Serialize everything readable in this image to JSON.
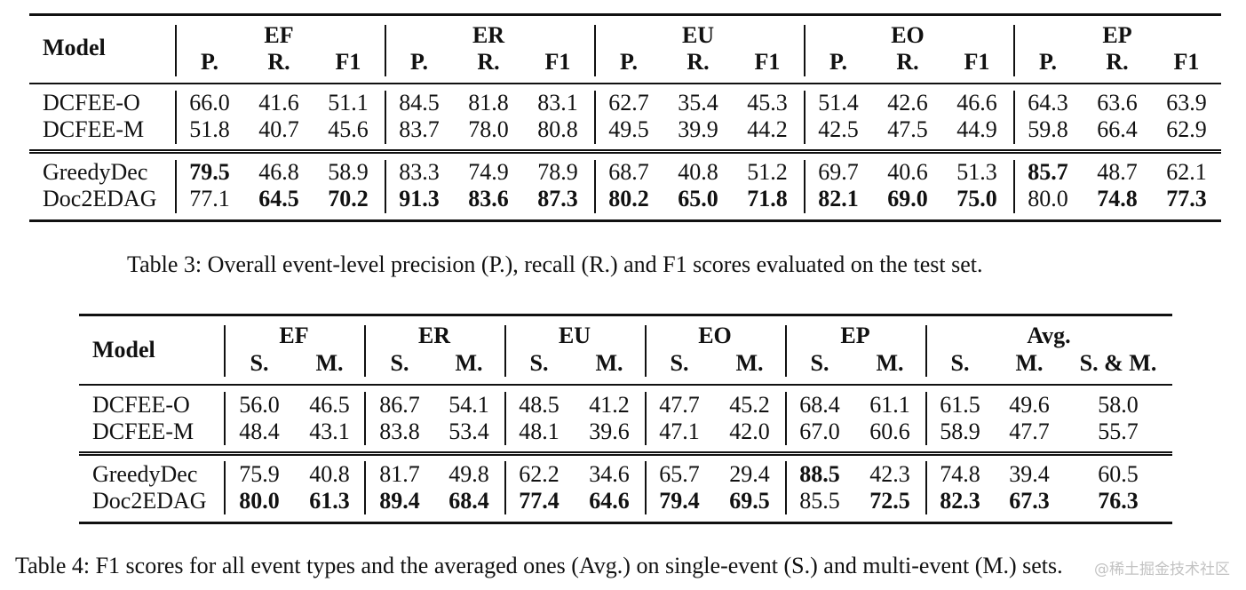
{
  "table3": {
    "model_header": "Model",
    "groups": [
      "EF",
      "ER",
      "EU",
      "EO",
      "EP"
    ],
    "subheaders": [
      "P.",
      "R.",
      "F1"
    ],
    "rows": [
      {
        "model": "DCFEE-O",
        "values": [
          "66.0",
          "41.6",
          "51.1",
          "84.5",
          "81.8",
          "83.1",
          "62.7",
          "35.4",
          "45.3",
          "51.4",
          "42.6",
          "46.6",
          "64.3",
          "63.6",
          "63.9"
        ],
        "bold": []
      },
      {
        "model": "DCFEE-M",
        "values": [
          "51.8",
          "40.7",
          "45.6",
          "83.7",
          "78.0",
          "80.8",
          "49.5",
          "39.9",
          "44.2",
          "42.5",
          "47.5",
          "44.9",
          "59.8",
          "66.4",
          "62.9"
        ],
        "bold": []
      },
      {
        "model": "GreedyDec",
        "values": [
          "79.5",
          "46.8",
          "58.9",
          "83.3",
          "74.9",
          "78.9",
          "68.7",
          "40.8",
          "51.2",
          "69.7",
          "40.6",
          "51.3",
          "85.7",
          "48.7",
          "62.1"
        ],
        "bold": [
          0,
          12
        ]
      },
      {
        "model": "Doc2EDAG",
        "values": [
          "77.1",
          "64.5",
          "70.2",
          "91.3",
          "83.6",
          "87.3",
          "80.2",
          "65.0",
          "71.8",
          "82.1",
          "69.0",
          "75.0",
          "80.0",
          "74.8",
          "77.3"
        ],
        "bold": [
          1,
          2,
          3,
          4,
          5,
          6,
          7,
          8,
          9,
          10,
          11,
          13,
          14
        ]
      }
    ],
    "caption": "Table 3: Overall event-level precision (P.), recall (R.) and F1 scores evaluated on the test set."
  },
  "table4": {
    "model_header": "Model",
    "groups": [
      "EF",
      "ER",
      "EU",
      "EO",
      "EP",
      "Avg."
    ],
    "subheaders": [
      "S.",
      "M.",
      "S.",
      "M.",
      "S.",
      "M.",
      "S.",
      "M.",
      "S.",
      "M.",
      "S.",
      "M.",
      "S. & M."
    ],
    "rows": [
      {
        "model": "DCFEE-O",
        "values": [
          "56.0",
          "46.5",
          "86.7",
          "54.1",
          "48.5",
          "41.2",
          "47.7",
          "45.2",
          "68.4",
          "61.1",
          "61.5",
          "49.6",
          "58.0"
        ],
        "bold": []
      },
      {
        "model": "DCFEE-M",
        "values": [
          "48.4",
          "43.1",
          "83.8",
          "53.4",
          "48.1",
          "39.6",
          "47.1",
          "42.0",
          "67.0",
          "60.6",
          "58.9",
          "47.7",
          "55.7"
        ],
        "bold": []
      },
      {
        "model": "GreedyDec",
        "values": [
          "75.9",
          "40.8",
          "81.7",
          "49.8",
          "62.2",
          "34.6",
          "65.7",
          "29.4",
          "88.5",
          "42.3",
          "74.8",
          "39.4",
          "60.5"
        ],
        "bold": [
          8
        ]
      },
      {
        "model": "Doc2EDAG",
        "values": [
          "80.0",
          "61.3",
          "89.4",
          "68.4",
          "77.4",
          "64.6",
          "79.4",
          "69.5",
          "85.5",
          "72.5",
          "82.3",
          "67.3",
          "76.3"
        ],
        "bold": [
          0,
          1,
          2,
          3,
          4,
          5,
          6,
          7,
          9,
          10,
          11,
          12
        ]
      }
    ],
    "caption": "Table 4: F1 scores for all event types and the averaged ones (Avg.) on single-event (S.) and multi-event (M.) sets."
  },
  "watermark": "@稀土掘金技术社区"
}
